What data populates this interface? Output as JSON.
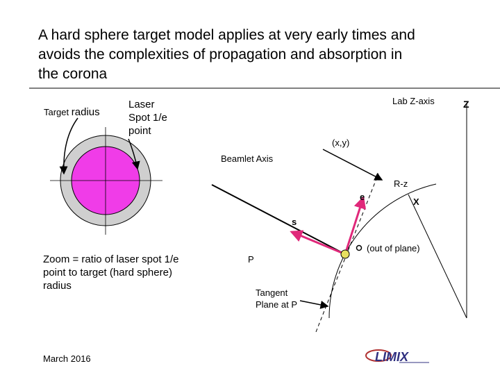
{
  "title_lines": [
    "A hard sphere target model applies at very early times and",
    "avoids the complexities of propagation and absorption in",
    "the corona"
  ],
  "target_label": {
    "small": "Target",
    "large": "radius"
  },
  "laser_spot_lines": [
    "Laser",
    "Spot 1/e",
    "point"
  ],
  "zoom_lines": [
    "Zoom = ratio of laser spot 1/e",
    "point to target (hard sphere)",
    "radius"
  ],
  "date": "March 2016",
  "geometry": {
    "lab_z_axis": "Lab Z-axis",
    "z": "Z",
    "xy": "(x,y)",
    "beamlet_axis": "Beamlet Axis",
    "r_z": "R-z",
    "e": "e",
    "x": "X",
    "s": "s",
    "p": "P",
    "out_marker": "o",
    "out_of_plane": "(out of plane)",
    "tangent_lines": [
      "Tangent",
      "Plane at P"
    ]
  }
}
